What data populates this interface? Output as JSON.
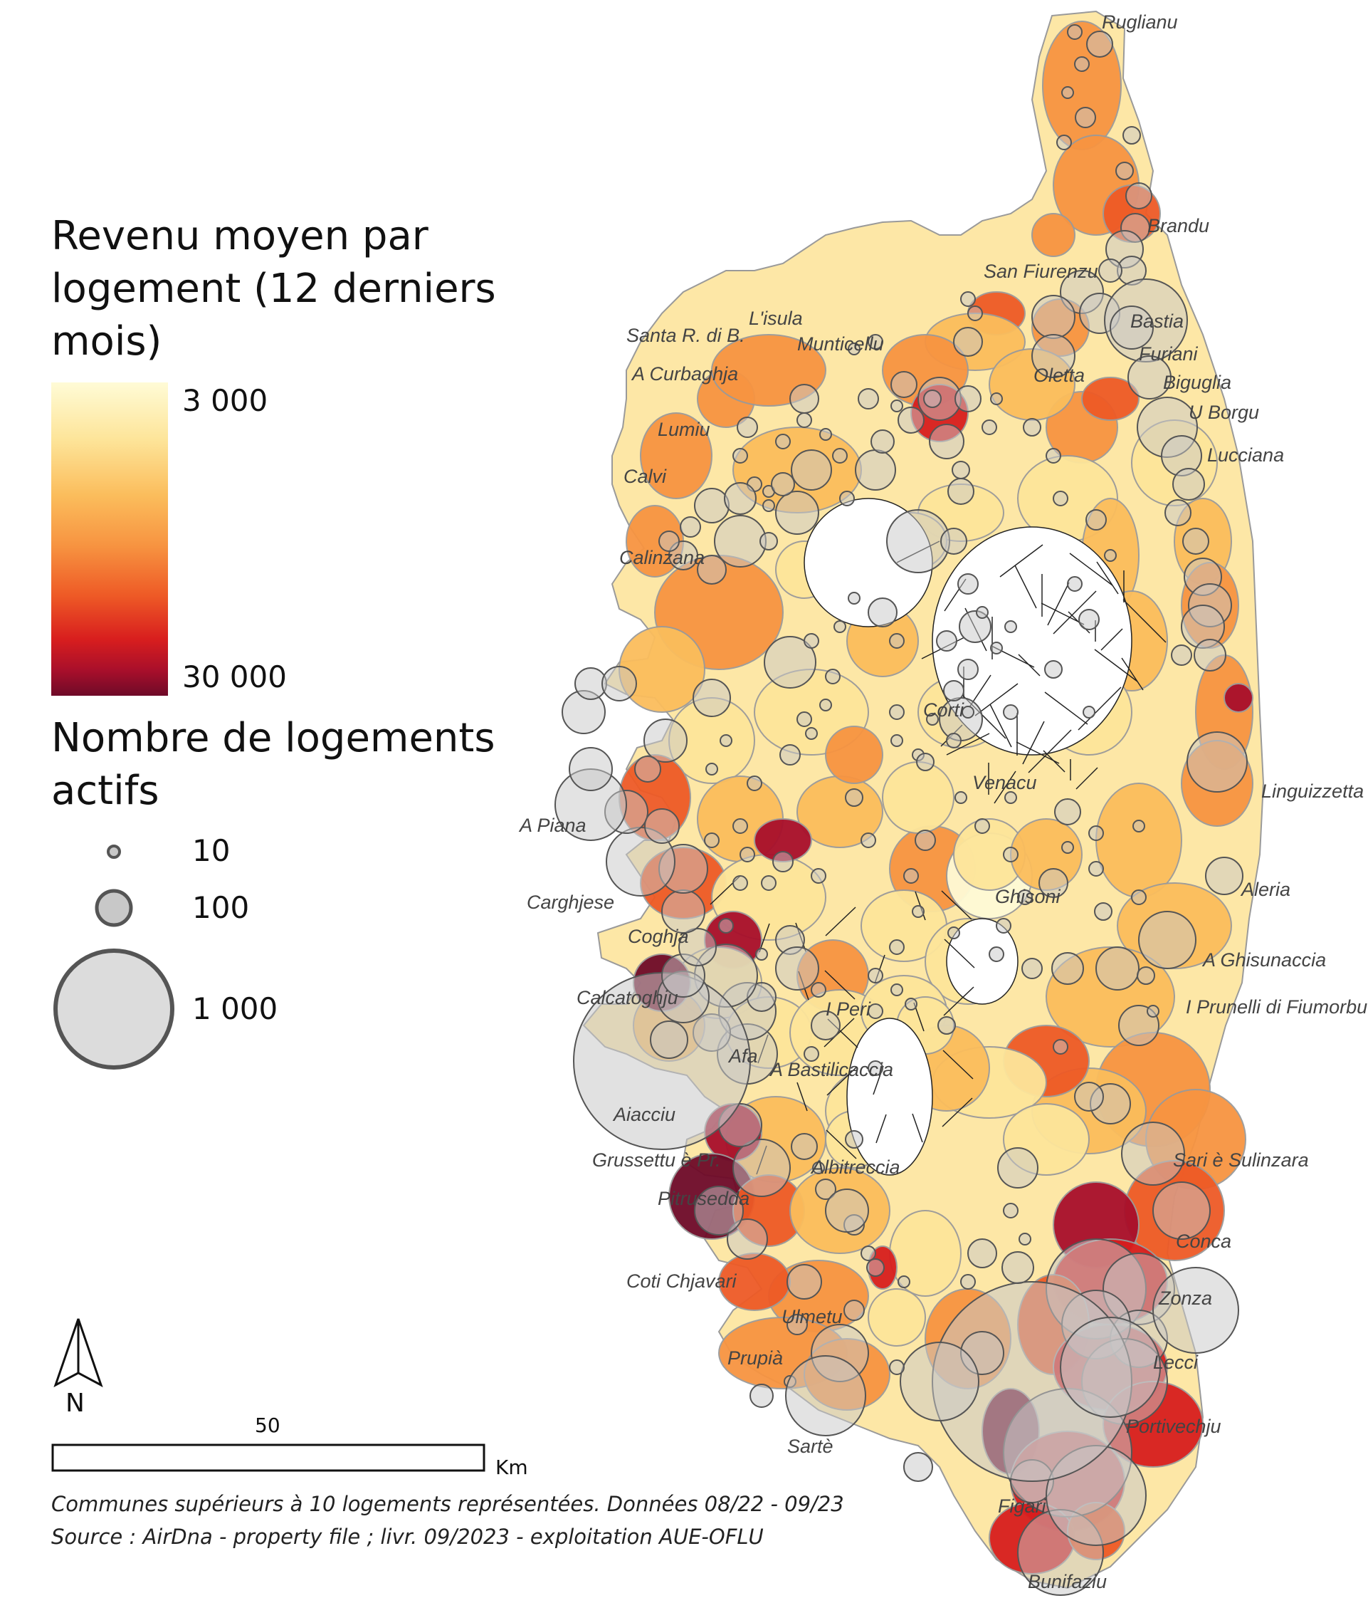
{
  "legend": {
    "revenue_title": "Revenu moyen par logement (12 derniers mois)",
    "revenue_title_lines": [
      "Revenu moyen par",
      "logement (12 derniers",
      "mois)"
    ],
    "revenue_min": "3 000",
    "revenue_max": "30 000",
    "gradient_colors": [
      "#fffbd6",
      "#fde59a",
      "#fbbd5c",
      "#f79441",
      "#ee5a26",
      "#d81e1e",
      "#a80f2b",
      "#6e0a28"
    ],
    "count_title_lines": [
      "Nombre de logements",
      "actifs"
    ],
    "count_values": [
      "10",
      "100",
      "1 000"
    ]
  },
  "north_label": "N",
  "scale": {
    "label": "50",
    "unit": "Km"
  },
  "notes": [
    "Communes supérieurs à 10 logements représentées. Données 08/22 - 09/23",
    "Source : AirDna - property file ; livr. 09/2023 - exploitation AUE-OFLU"
  ],
  "place_labels": [
    "Ruglianu",
    "Brandu",
    "San Fiurenzu",
    "Bastia",
    "Furiani",
    "Oletta",
    "Biguglia",
    "U Borgu",
    "Lucciana",
    "Santa R. di B.",
    "L'isula",
    "Munticellu",
    "A Curbaghja",
    "Lumiu",
    "Calvi",
    "Calinzana",
    "Corti",
    "Venacu",
    "Linguizzetta",
    "A Piana",
    "Carghjese",
    "Aleria",
    "Ghisoni",
    "Coghja",
    "A Ghisunaccia",
    "Calcatoghju",
    "I Peri",
    "I Prunelli di Fiumorbu",
    "Afa",
    "A Bastilicaccia",
    "Aiacciu",
    "Grussettu è Pr.",
    "Albitreccia",
    "Sari è Sulinzara",
    "Pitrusedda",
    "Conca",
    "Coti Chjavari",
    "Zonza",
    "Ulmetu",
    "Lecci",
    "Prupià",
    "Portivechju",
    "Sartè",
    "Figari",
    "Bunifaziu"
  ],
  "colors": {
    "outline": "#9a9a9a",
    "bubble_fill": "#c8c8c8",
    "bubble_stroke": "#555555",
    "inner_lines": "#222222"
  }
}
